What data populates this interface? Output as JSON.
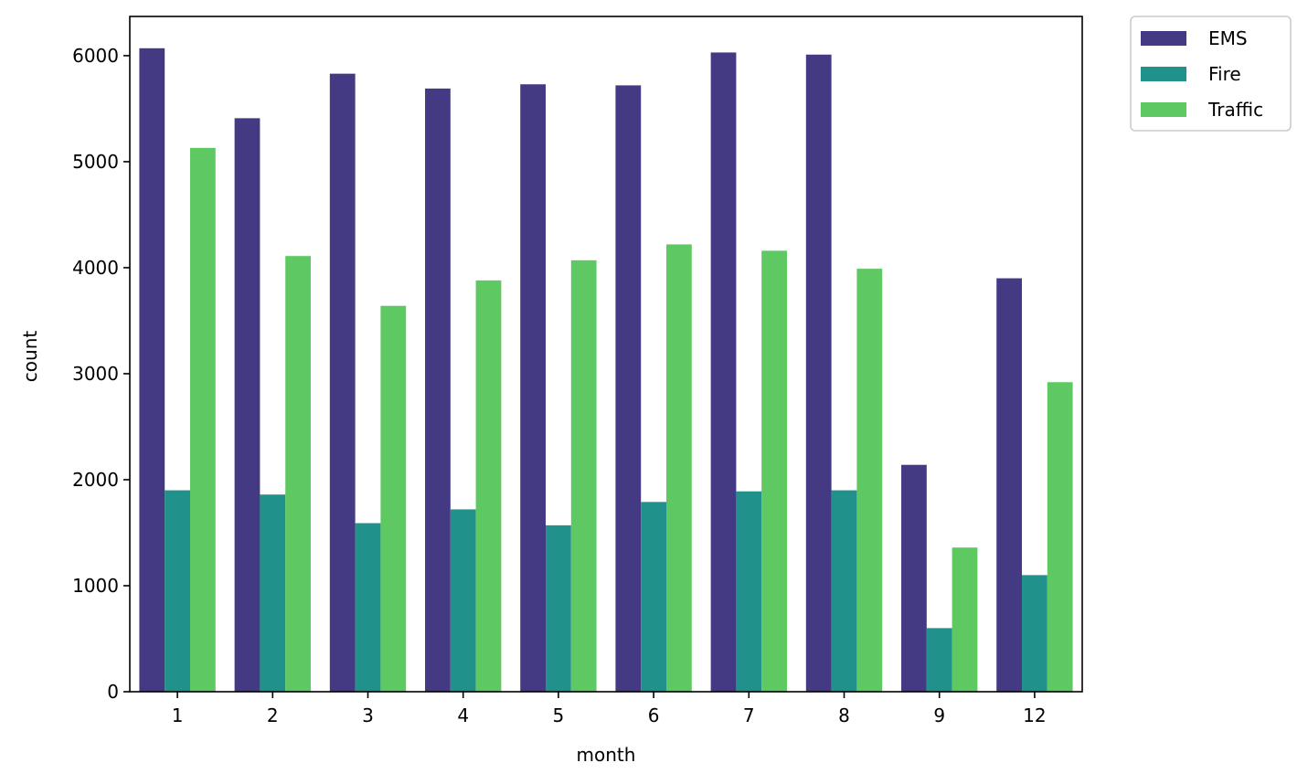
{
  "chart_data": {
    "type": "bar",
    "xlabel": "month",
    "ylabel": "count",
    "categories": [
      "1",
      "2",
      "3",
      "4",
      "5",
      "6",
      "7",
      "8",
      "9",
      "12"
    ],
    "series": [
      {
        "name": "EMS",
        "color": "#443983",
        "values": [
          6070,
          5410,
          5830,
          5690,
          5730,
          5720,
          6030,
          6010,
          2140,
          3900
        ]
      },
      {
        "name": "Fire",
        "color": "#21918c",
        "values": [
          1900,
          1860,
          1590,
          1720,
          1570,
          1790,
          1890,
          1900,
          600,
          1100
        ]
      },
      {
        "name": "Traffic",
        "color": "#5ec962",
        "values": [
          5130,
          4110,
          3640,
          3880,
          4070,
          4220,
          4160,
          3990,
          1360,
          2920
        ]
      }
    ],
    "yticks": [
      "0",
      "1000",
      "2000",
      "3000",
      "4000",
      "5000",
      "6000"
    ],
    "ylim": [
      0,
      6370
    ],
    "grid": false,
    "legend_position": "outside-top-right"
  }
}
